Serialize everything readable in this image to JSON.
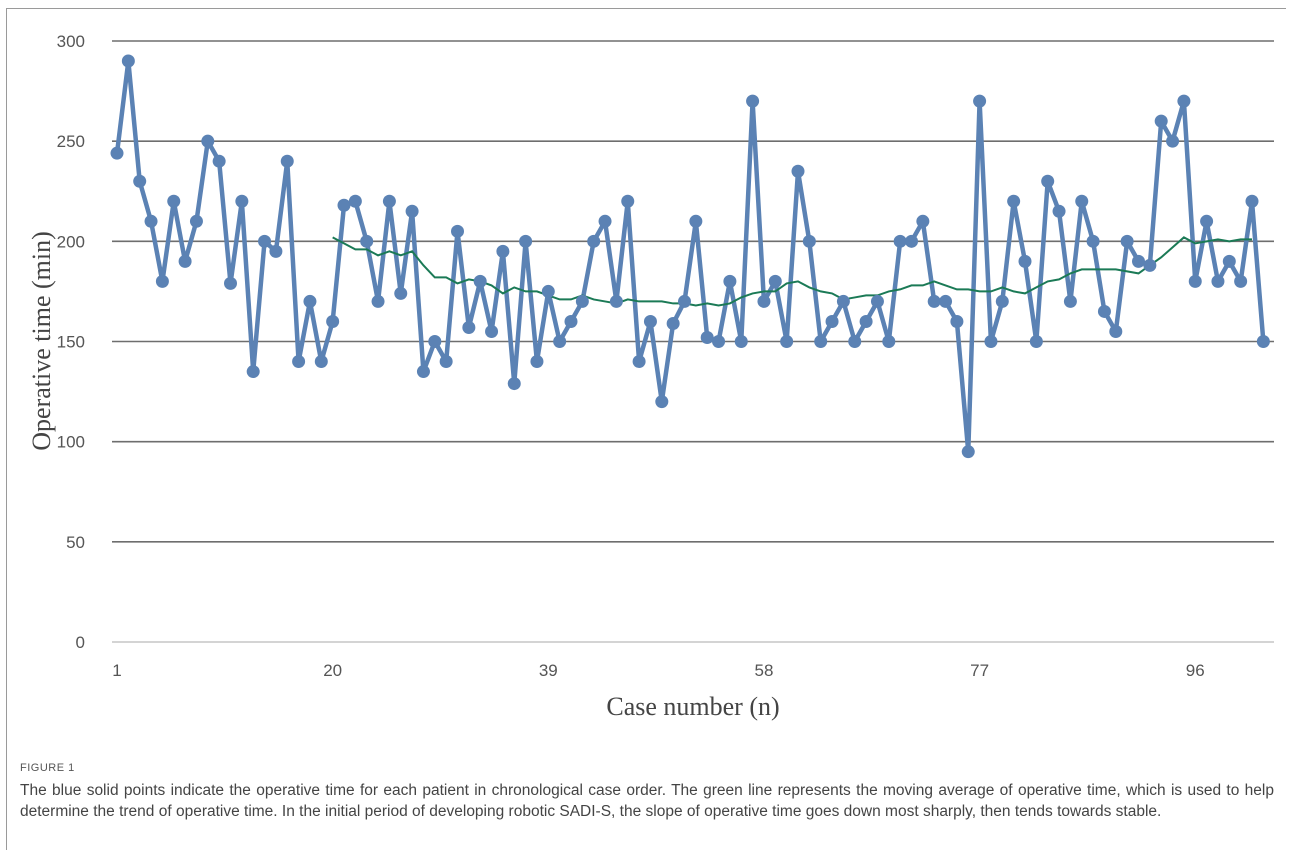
{
  "chart_data": {
    "type": "line",
    "title": "",
    "xlabel": "Case number (n)",
    "ylabel": "Operative time (min)",
    "ylim": [
      0,
      300
    ],
    "y_ticks": [
      0,
      50,
      100,
      150,
      200,
      250,
      300
    ],
    "x_tick_labels": [
      1,
      20,
      39,
      58,
      77,
      96
    ],
    "xlim": [
      1,
      100
    ],
    "grid": "horizontal",
    "colors": {
      "series": "#5b82b4",
      "moving_average": "#1b7a56",
      "grid": "#6e6e6e"
    },
    "series": [
      {
        "values": [
          244,
          290,
          230,
          210,
          180,
          220,
          190,
          210,
          250,
          240,
          179,
          220,
          135,
          200,
          195,
          240,
          140,
          170,
          140,
          160,
          218,
          220,
          200,
          170,
          220,
          174,
          215,
          135,
          150,
          140,
          205,
          157,
          180,
          155,
          195,
          129,
          200,
          140,
          175,
          150,
          160,
          170,
          200,
          210,
          170,
          220,
          140,
          160,
          120,
          159,
          170,
          210,
          152,
          150,
          180,
          150,
          270,
          170,
          180,
          150,
          235,
          200,
          150,
          160,
          170,
          150,
          160,
          170,
          150,
          200,
          200,
          210,
          170,
          170,
          160,
          95,
          270,
          150,
          170,
          220,
          190,
          150,
          230,
          215,
          170,
          220,
          200,
          165,
          155,
          200,
          190,
          188,
          260,
          250,
          270,
          180,
          210,
          180,
          190,
          180,
          220,
          150
        ]
      },
      {
        "start_x": 20,
        "values": [
          202,
          199,
          196,
          196,
          193,
          195,
          193,
          195,
          188,
          182,
          182,
          179,
          181,
          180,
          178,
          174,
          177,
          175,
          175,
          173,
          171,
          171,
          173,
          171,
          170,
          169,
          171,
          170,
          170,
          170,
          169,
          169,
          168,
          169,
          168,
          169,
          172,
          174,
          175,
          175,
          179,
          180,
          177,
          175,
          174,
          171,
          172,
          173,
          173,
          175,
          176,
          178,
          178,
          180,
          178,
          176,
          176,
          175,
          175,
          177,
          175,
          174,
          177,
          180,
          181,
          184,
          186,
          186,
          186,
          186,
          185,
          184,
          188,
          192,
          197,
          202,
          199,
          200,
          201,
          200,
          201,
          201
        ]
      }
    ]
  },
  "caption": {
    "label": "FIGURE 1",
    "text": "The blue solid points indicate the operative time for each patient in chronological case order. The green line represents the moving average of operative time, which is used to help determine the trend of operative time. In the initial period of developing robotic SADI-S, the slope of operative time goes down most sharply, then tends towards stable."
  }
}
